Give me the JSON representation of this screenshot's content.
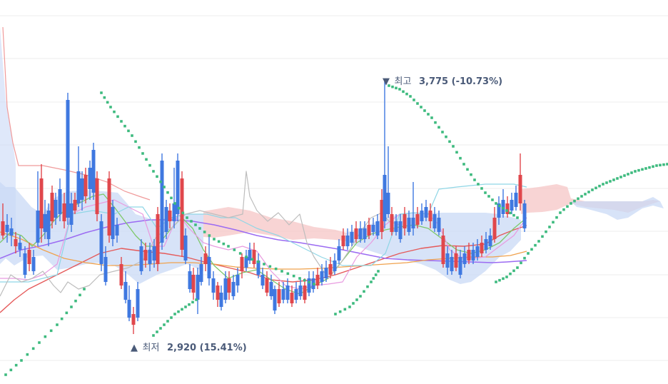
{
  "chart_data": {
    "type": "candlestick",
    "grid": true,
    "ylim": [
      2700,
      4000
    ],
    "colors": {
      "up": "#e0474c",
      "down": "#3f78e0",
      "cloud_bull": "#f6c9c9",
      "cloud_bear": "#c9d9f6",
      "parabolic_sar": "#3dba7e",
      "ma_short": "#7ec86a",
      "ma_mid": "#e55a5a",
      "ma_long": "#9b6bf2",
      "ma_xlong": "#f0a24d",
      "tenkan": "#e89be0",
      "kijun": "#8fd6e6",
      "lagging": "#bdbdbd"
    },
    "annotations": [
      {
        "marker": "▼",
        "label": "최고",
        "value": "3,775 (-10.73%)",
        "type": "high"
      },
      {
        "marker": "▲",
        "label": "최저",
        "value": "2,920 (15.41%)",
        "type": "low"
      }
    ]
  }
}
